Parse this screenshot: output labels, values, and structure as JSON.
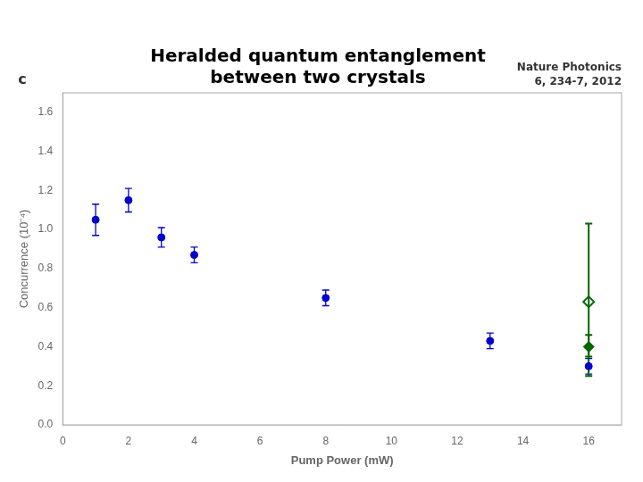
{
  "chart_data": {
    "type": "scatter",
    "title": [
      "Heralded quantum entanglement",
      "between two crystals"
    ],
    "annotations": [
      "c",
      "Nature Photonics",
      "6, 234-7, 2012"
    ],
    "x_label": "Pump Power (mW)",
    "y_label": "Concurrence (10⁻⁴)",
    "xlim": [
      0,
      17
    ],
    "ylim": [
      0.0,
      1.7
    ],
    "xticks": [
      0,
      2,
      4,
      6,
      8,
      10,
      12,
      14,
      16
    ],
    "yticks": [
      {
        "value": 0,
        "label": "0.0"
      },
      0.2,
      0.4,
      0.6,
      0.8,
      {
        "value": 1,
        "label": "1.0"
      },
      1.2,
      1.4,
      1.6
    ],
    "grid": false,
    "series": [
      {
        "color": "#0000cc",
        "marker": "circle",
        "x": [
          1.0,
          2.0,
          3.0,
          4.0,
          8.0,
          13.0,
          16.0
        ],
        "values": [
          1.05,
          1.15,
          0.96,
          0.87,
          0.65,
          0.43,
          0.3
        ],
        "yerr": [
          0.08,
          0.06,
          0.05,
          0.04,
          0.04,
          0.04,
          0.04
        ]
      },
      {
        "color": "#006600",
        "marker": "open_diamond",
        "x": [
          16.0
        ],
        "values": [
          0.63
        ],
        "yerr_lo": [
          0.38
        ],
        "yerr_hi": [
          0.4
        ]
      },
      {
        "color": "#006600",
        "marker": "diamond",
        "x": [
          16.0
        ],
        "values": [
          0.4
        ],
        "yerr_lo": [
          0.05
        ],
        "yerr_hi": [
          0.06
        ]
      }
    ]
  }
}
